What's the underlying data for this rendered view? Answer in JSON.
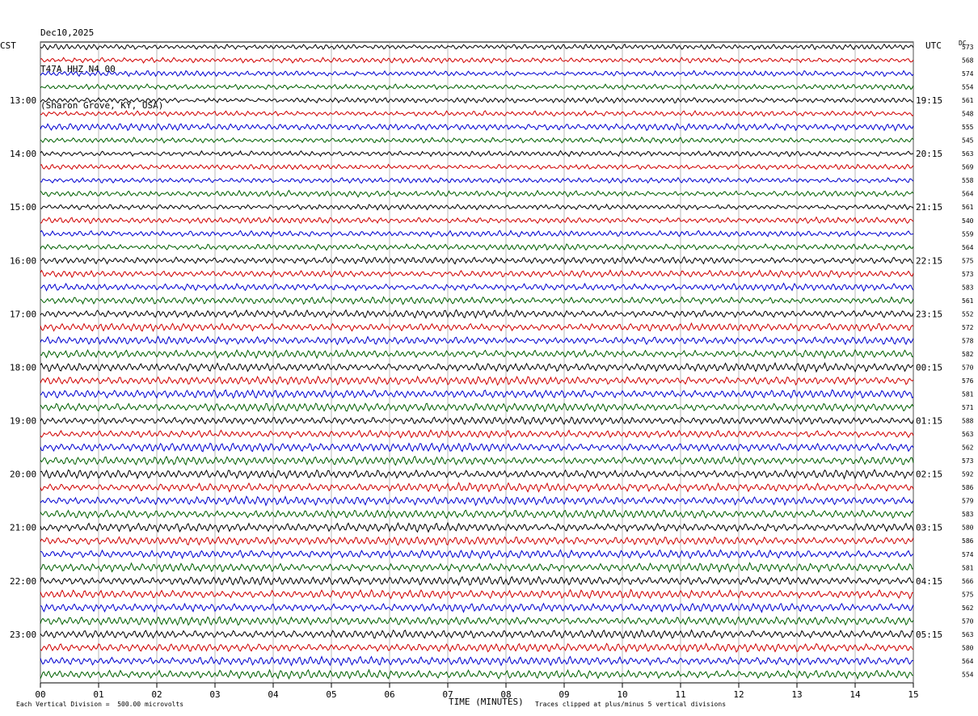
{
  "header": {
    "date": "Dec10,2025",
    "station": "T47A HHZ N4 00",
    "location": "(Sharon Grove, KY, USA)"
  },
  "left_timezone": "CST",
  "right_timezone": "UTC",
  "dc_label": "DC",
  "footer": {
    "scale_note": "Each Vertical Division =  500.00 microvolts",
    "clip_note": "Traces clipped at plus/minus 5 vertical divisions"
  },
  "colors": {
    "trace_cycle": [
      "#000000",
      "#d00000",
      "#0000d0",
      "#006000"
    ],
    "grid": "#888888"
  },
  "chart_data": {
    "type": "line",
    "xlabel": "TIME (MINUTES)",
    "x_ticks": [
      "00",
      "01",
      "02",
      "03",
      "04",
      "05",
      "06",
      "07",
      "08",
      "09",
      "10",
      "11",
      "12",
      "13",
      "14",
      "15"
    ],
    "xlim": [
      0,
      15
    ],
    "left_hour_labels": [
      "13:00",
      "14:00",
      "15:00",
      "16:00",
      "17:00",
      "18:00",
      "19:00",
      "20:00",
      "21:00",
      "22:00",
      "23:00"
    ],
    "right_hour_labels": [
      "19:15",
      "20:15",
      "21:15",
      "22:15",
      "23:15",
      "00:15",
      "01:15",
      "02:15",
      "03:15",
      "04:15",
      "05:15"
    ],
    "dc_offsets": [
      "573",
      "568",
      "574",
      "554",
      "561",
      "548",
      "555",
      "545",
      "563",
      "569",
      "558",
      "564",
      "561",
      "540",
      "559",
      "564",
      "575",
      "573",
      "583",
      "561",
      "552",
      "572",
      "578",
      "582",
      "570",
      "576",
      "581",
      "571",
      "588",
      "563",
      "562",
      "573",
      "592",
      "586",
      "579",
      "583",
      "580",
      "586",
      "574",
      "581",
      "566",
      "575",
      "562",
      "570",
      "563",
      "580",
      "564",
      "554"
    ],
    "trace_amplitude_relative": [
      0.6,
      0.6,
      0.6,
      0.6,
      0.6,
      0.6,
      0.8,
      0.6,
      0.6,
      0.6,
      0.6,
      0.7,
      0.6,
      0.7,
      0.7,
      0.7,
      0.8,
      0.8,
      0.8,
      0.8,
      0.9,
      0.9,
      0.9,
      0.9,
      1.0,
      1.0,
      1.0,
      1.0,
      0.9,
      0.9,
      1.0,
      1.0,
      1.0,
      1.0,
      1.0,
      1.0,
      1.0,
      1.0,
      1.0,
      1.0,
      1.0,
      1.0,
      1.0,
      1.0,
      1.0,
      1.0,
      1.0,
      1.0
    ],
    "trace_count": 48
  }
}
